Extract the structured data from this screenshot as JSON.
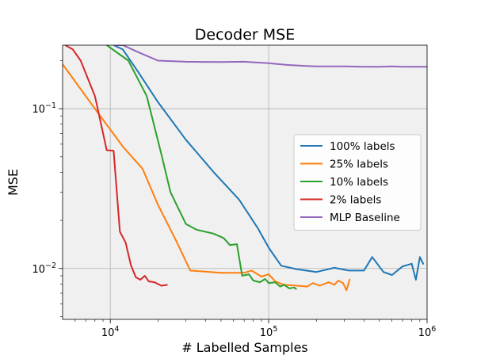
{
  "chart_data": {
    "type": "line",
    "title": "Decoder MSE",
    "xlabel": "# Labelled Samples",
    "ylabel": "MSE",
    "xscale": "log",
    "yscale": "log",
    "xlim": [
      5000,
      1000000
    ],
    "ylim": [
      0.0048,
      0.25
    ],
    "x_tick_labels": [
      {
        "value": 10000,
        "base": "10",
        "exp": "4"
      },
      {
        "value": 100000,
        "base": "10",
        "exp": "5"
      },
      {
        "value": 1000000,
        "base": "10",
        "exp": "6"
      }
    ],
    "y_tick_labels": [
      {
        "value": 0.1,
        "base": "10",
        "exp": "−1"
      },
      {
        "value": 0.01,
        "base": "10",
        "exp": "−2"
      }
    ],
    "grid": true,
    "legend_position": "center-right",
    "background_color": "#f0f0f0",
    "series": [
      {
        "name": "100% labels",
        "color": "#1f77b4",
        "points": [
          [
            10500,
            0.25
          ],
          [
            12000,
            0.235
          ],
          [
            15000,
            0.17
          ],
          [
            20000,
            0.11
          ],
          [
            30000,
            0.064
          ],
          [
            45000,
            0.04
          ],
          [
            65000,
            0.027
          ],
          [
            85000,
            0.018
          ],
          [
            100000,
            0.0135
          ],
          [
            120000,
            0.0104
          ],
          [
            150000,
            0.0099
          ],
          [
            200000,
            0.0095
          ],
          [
            260000,
            0.0101
          ],
          [
            320000,
            0.0097
          ],
          [
            400000,
            0.0097
          ],
          [
            450000,
            0.0118
          ],
          [
            530000,
            0.0095
          ],
          [
            600000,
            0.0091
          ],
          [
            700000,
            0.0103
          ],
          [
            800000,
            0.0107
          ],
          [
            850000,
            0.0085
          ],
          [
            900000,
            0.0118
          ],
          [
            950000,
            0.0106
          ]
        ]
      },
      {
        "name": "25% labels",
        "color": "#ff7f0e",
        "points": [
          [
            5000,
            0.19
          ],
          [
            8000,
            0.1
          ],
          [
            12000,
            0.058
          ],
          [
            16000,
            0.042
          ],
          [
            20000,
            0.025
          ],
          [
            26000,
            0.015
          ],
          [
            32000,
            0.0097
          ],
          [
            50000,
            0.0094
          ],
          [
            70000,
            0.0094
          ],
          [
            78000,
            0.0097
          ],
          [
            90000,
            0.0089
          ],
          [
            100000,
            0.0092
          ],
          [
            110000,
            0.0083
          ],
          [
            125000,
            0.0079
          ],
          [
            150000,
            0.0078
          ],
          [
            175000,
            0.0077
          ],
          [
            190000,
            0.0081
          ],
          [
            210000,
            0.0078
          ],
          [
            240000,
            0.0082
          ],
          [
            260000,
            0.0079
          ],
          [
            275000,
            0.0084
          ],
          [
            295000,
            0.0081
          ],
          [
            310000,
            0.0073
          ],
          [
            325000,
            0.0086
          ]
        ]
      },
      {
        "name": "10% labels",
        "color": "#2ca02c",
        "points": [
          [
            9500,
            0.25
          ],
          [
            13000,
            0.2
          ],
          [
            17000,
            0.12
          ],
          [
            21000,
            0.052
          ],
          [
            24000,
            0.03
          ],
          [
            30000,
            0.019
          ],
          [
            35000,
            0.0175
          ],
          [
            45000,
            0.0165
          ],
          [
            52000,
            0.0155
          ],
          [
            57000,
            0.014
          ],
          [
            63000,
            0.0142
          ],
          [
            68000,
            0.009
          ],
          [
            75000,
            0.0092
          ],
          [
            80000,
            0.0084
          ],
          [
            88000,
            0.0082
          ],
          [
            95000,
            0.0086
          ],
          [
            100000,
            0.0081
          ],
          [
            110000,
            0.0082
          ],
          [
            118000,
            0.0077
          ],
          [
            125000,
            0.0079
          ],
          [
            135000,
            0.0075
          ],
          [
            145000,
            0.0076
          ],
          [
            150000,
            0.0074
          ]
        ]
      },
      {
        "name": "2% labels",
        "color": "#d62728",
        "points": [
          [
            5200,
            0.25
          ],
          [
            5800,
            0.235
          ],
          [
            6500,
            0.2
          ],
          [
            8000,
            0.12
          ],
          [
            9500,
            0.055
          ],
          [
            10500,
            0.0545
          ],
          [
            11500,
            0.017
          ],
          [
            12500,
            0.0145
          ],
          [
            13500,
            0.0105
          ],
          [
            14500,
            0.0088
          ],
          [
            15500,
            0.0085
          ],
          [
            16500,
            0.009
          ],
          [
            17500,
            0.0083
          ],
          [
            19000,
            0.0082
          ],
          [
            21000,
            0.0078
          ],
          [
            23000,
            0.0079
          ]
        ]
      },
      {
        "name": "MLP Baseline",
        "color": "#9467bd",
        "points": [
          [
            10500,
            0.25
          ],
          [
            12000,
            0.25
          ],
          [
            15000,
            0.226
          ],
          [
            20000,
            0.2
          ],
          [
            30000,
            0.197
          ],
          [
            50000,
            0.196
          ],
          [
            70000,
            0.197
          ],
          [
            100000,
            0.193
          ],
          [
            130000,
            0.188
          ],
          [
            160000,
            0.186
          ],
          [
            200000,
            0.184
          ],
          [
            250000,
            0.184
          ],
          [
            300000,
            0.184
          ],
          [
            400000,
            0.183
          ],
          [
            500000,
            0.183
          ],
          [
            600000,
            0.184
          ],
          [
            700000,
            0.183
          ],
          [
            800000,
            0.183
          ],
          [
            900000,
            0.183
          ],
          [
            1000000,
            0.183
          ]
        ]
      }
    ]
  }
}
